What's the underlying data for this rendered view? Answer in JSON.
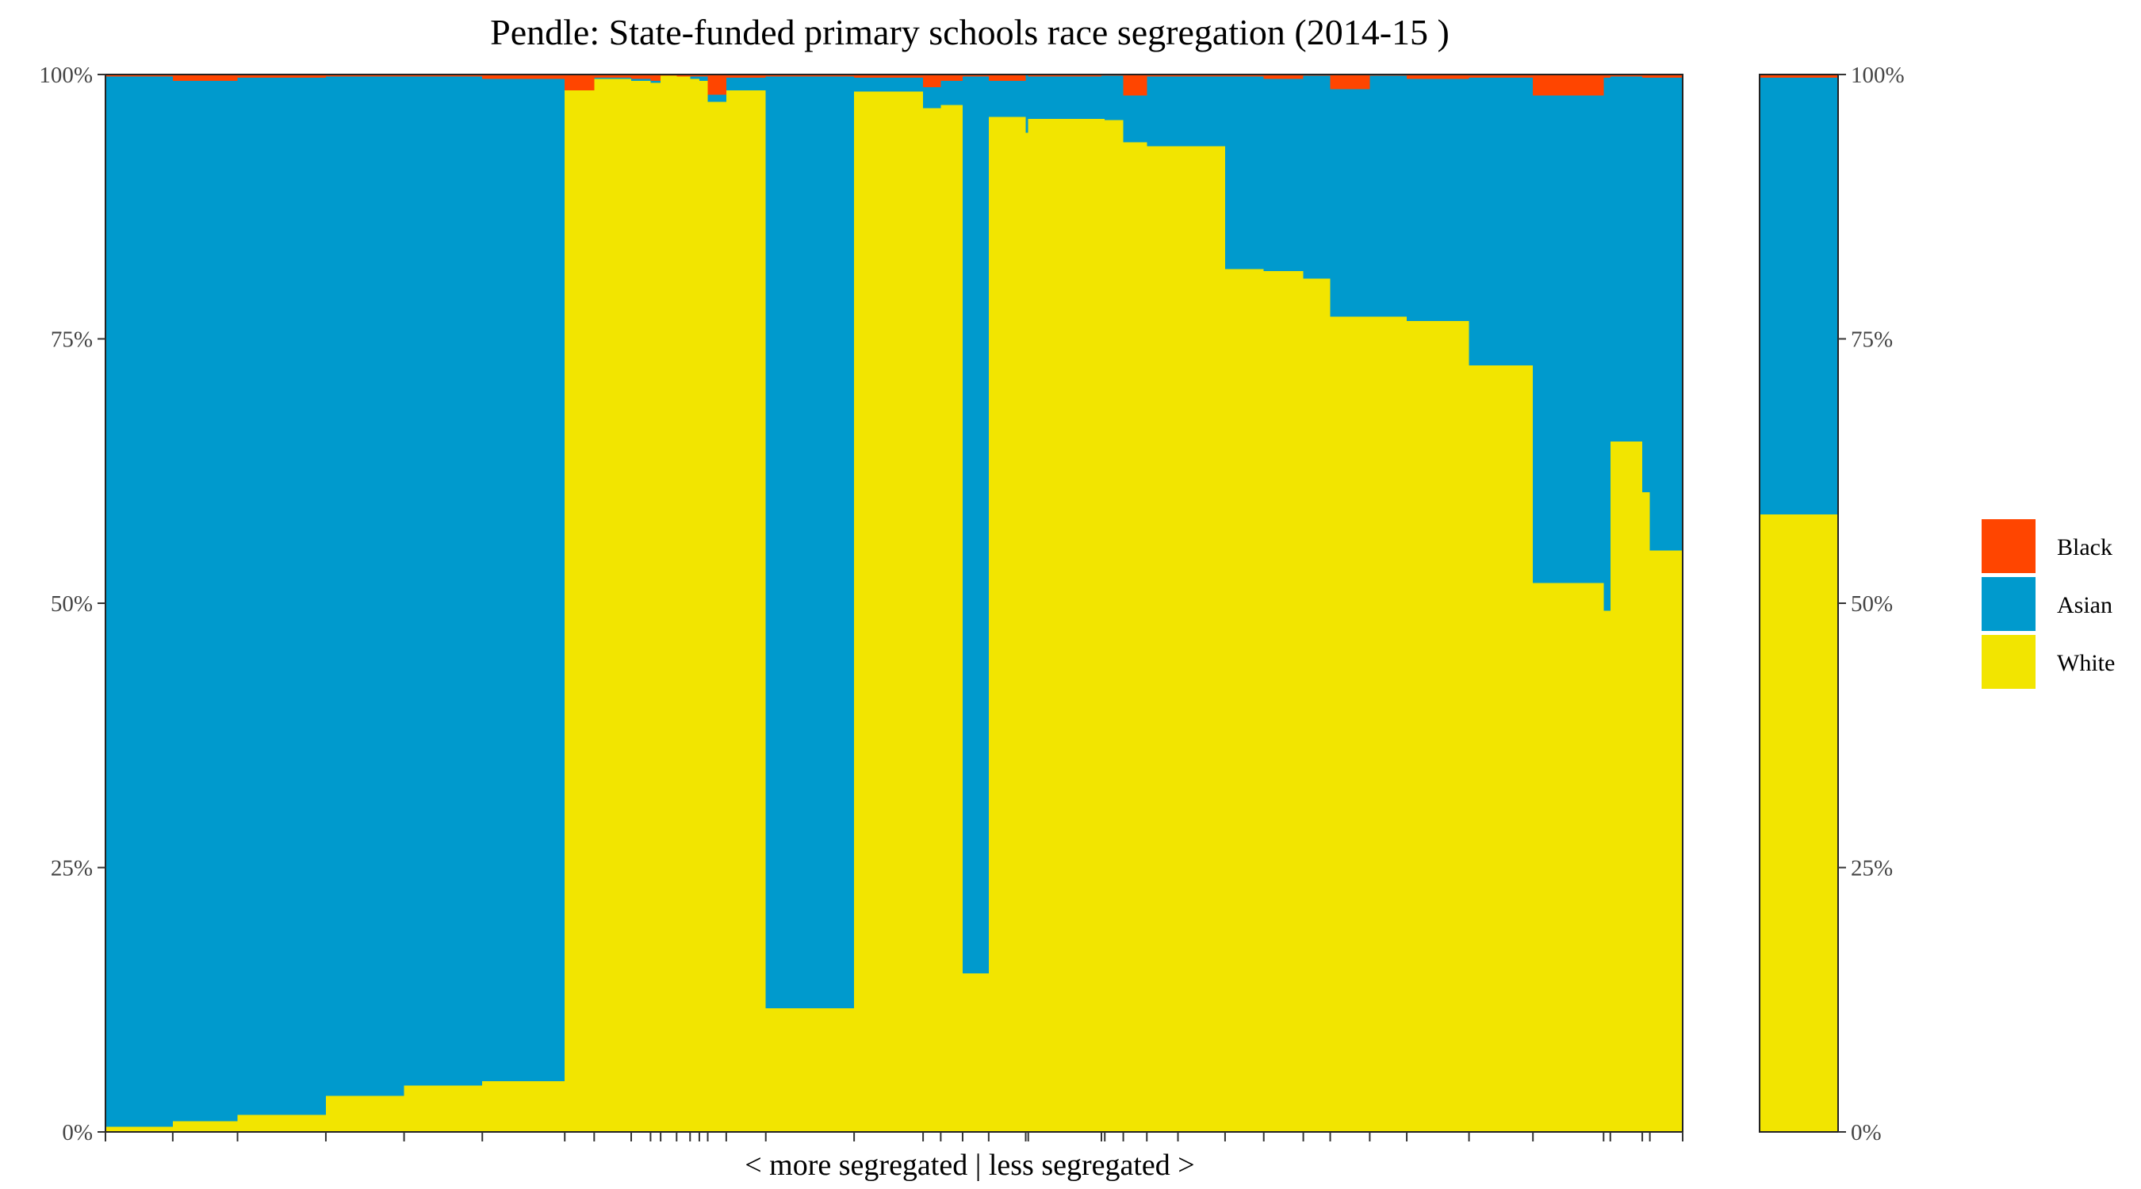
{
  "chart_data": {
    "type": "bar",
    "title": "Pendle: State-funded primary schools race segregation (2014-15 )",
    "xlabel": "< more segregated | less segregated >",
    "ylabel": "",
    "ylim": [
      0,
      100
    ],
    "y_ticks": [
      "0%",
      "25%",
      "50%",
      "75%",
      "100%"
    ],
    "grid": false,
    "legend_position": "right",
    "series_colors": {
      "Black": "#FF4500",
      "Asian": "#009ACD",
      "White": "#F2E500"
    },
    "legend": [
      "Black",
      "Asian",
      "White"
    ],
    "schools": [
      {
        "pupils": 80,
        "white": 0.5,
        "asian": 99.3,
        "black": 0.2
      },
      {
        "pupils": 77,
        "white": 1.0,
        "asian": 98.4,
        "black": 0.6
      },
      {
        "pupils": 105,
        "white": 1.6,
        "asian": 98.1,
        "black": 0.3
      },
      {
        "pupils": 93,
        "white": 3.4,
        "asian": 96.4,
        "black": 0.2
      },
      {
        "pupils": 93,
        "white": 4.4,
        "asian": 95.4,
        "black": 0.2
      },
      {
        "pupils": 98,
        "white": 4.8,
        "asian": 94.8,
        "black": 0.4
      },
      {
        "pupils": 35,
        "white": 98.5,
        "asian": 0.0,
        "black": 1.5
      },
      {
        "pupils": 44,
        "white": 99.6,
        "asian": 0.1,
        "black": 0.3
      },
      {
        "pupils": 23,
        "white": 99.4,
        "asian": 0.2,
        "black": 0.4
      },
      {
        "pupils": 12,
        "white": 99.2,
        "asian": 0.2,
        "black": 0.6
      },
      {
        "pupils": 19,
        "white": 99.9,
        "asian": 0.0,
        "black": 0.1
      },
      {
        "pupils": 16,
        "white": 99.8,
        "asian": 0.0,
        "black": 0.2
      },
      {
        "pupils": 11,
        "white": 99.6,
        "asian": 0.2,
        "black": 0.2
      },
      {
        "pupils": 10,
        "white": 99.4,
        "asian": 0.4,
        "black": 0.2
      },
      {
        "pupils": 22,
        "white": 97.4,
        "asian": 0.7,
        "black": 1.9
      },
      {
        "pupils": 47,
        "white": 98.5,
        "asian": 1.2,
        "black": 0.3
      },
      {
        "pupils": 105,
        "white": 11.7,
        "asian": 88.1,
        "black": 0.2
      },
      {
        "pupils": 82,
        "white": 98.4,
        "asian": 1.3,
        "black": 0.3
      },
      {
        "pupils": 21,
        "white": 96.8,
        "asian": 2.0,
        "black": 1.2
      },
      {
        "pupils": 26,
        "white": 97.1,
        "asian": 2.3,
        "black": 0.6
      },
      {
        "pupils": 31,
        "white": 15.0,
        "asian": 84.8,
        "black": 0.2
      },
      {
        "pupils": 44,
        "white": 96.0,
        "asian": 3.4,
        "black": 0.6
      },
      {
        "pupils": 3,
        "white": 94.5,
        "asian": 5.5,
        "black": 0.0
      },
      {
        "pupils": 87,
        "white": 95.8,
        "asian": 4.0,
        "black": 0.2
      },
      {
        "pupils": 4,
        "white": 95.8,
        "asian": 4.1,
        "black": 0.1
      },
      {
        "pupils": 22,
        "white": 95.7,
        "asian": 4.2,
        "black": 0.1
      },
      {
        "pupils": 28,
        "white": 93.6,
        "asian": 4.4,
        "black": 2.0
      },
      {
        "pupils": 37,
        "white": 93.2,
        "asian": 6.6,
        "black": 0.2
      },
      {
        "pupils": 56,
        "white": 93.2,
        "asian": 6.6,
        "black": 0.2
      },
      {
        "pupils": 46,
        "white": 81.6,
        "asian": 18.2,
        "black": 0.2
      },
      {
        "pupils": 47,
        "white": 81.4,
        "asian": 18.2,
        "black": 0.4
      },
      {
        "pupils": 32,
        "white": 80.7,
        "asian": 19.2,
        "black": 0.1
      },
      {
        "pupils": 47,
        "white": 77.1,
        "asian": 21.5,
        "black": 1.4
      },
      {
        "pupils": 44,
        "white": 77.1,
        "asian": 22.8,
        "black": 0.1
      },
      {
        "pupils": 74,
        "white": 76.7,
        "asian": 22.9,
        "black": 0.4
      },
      {
        "pupils": 76,
        "white": 72.5,
        "asian": 27.2,
        "black": 0.3
      },
      {
        "pupils": 84,
        "white": 51.9,
        "asian": 46.1,
        "black": 2.0
      },
      {
        "pupils": 8,
        "white": 49.3,
        "asian": 50.4,
        "black": 0.3
      },
      {
        "pupils": 38,
        "white": 65.3,
        "asian": 34.5,
        "black": 0.2
      },
      {
        "pupils": 9,
        "white": 60.5,
        "asian": 39.2,
        "black": 0.3
      },
      {
        "pupils": 39,
        "white": 55.0,
        "asian": 44.7,
        "black": 0.3
      }
    ],
    "overall": {
      "white": 58.4,
      "asian": 41.3,
      "black": 0.3
    }
  }
}
